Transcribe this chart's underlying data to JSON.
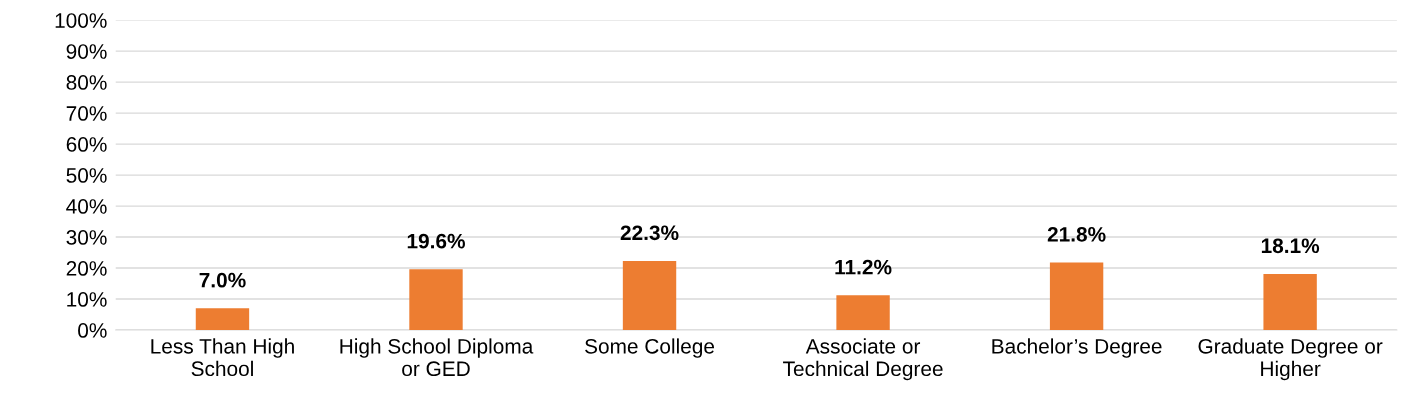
{
  "chart_data": {
    "type": "bar",
    "categories": [
      "Less Than High\nSchool",
      "High School Diploma\nor GED",
      "Some College",
      "Associate or\nTechnical Degree",
      "Bachelor’s Degree",
      "Graduate Degree or\nHigher"
    ],
    "values": [
      7.0,
      19.6,
      22.3,
      11.2,
      21.8,
      18.1
    ],
    "value_labels": [
      "7.0%",
      "19.6%",
      "22.3%",
      "11.2%",
      "21.8%",
      "18.1%"
    ],
    "color": "#ed7d31",
    "ylim": [
      0,
      100
    ],
    "yticks": [
      {
        "value": 0,
        "label": "0%"
      },
      {
        "value": 10,
        "label": "10%"
      },
      {
        "value": 20,
        "label": "20%"
      },
      {
        "value": 30,
        "label": "30%"
      },
      {
        "value": 40,
        "label": "40%"
      },
      {
        "value": 50,
        "label": "50%"
      },
      {
        "value": 60,
        "label": "60%"
      },
      {
        "value": 70,
        "label": "70%"
      },
      {
        "value": 80,
        "label": "80%"
      },
      {
        "value": 90,
        "label": "90%"
      },
      {
        "value": 100,
        "label": "100%"
      }
    ],
    "grid": "y"
  }
}
